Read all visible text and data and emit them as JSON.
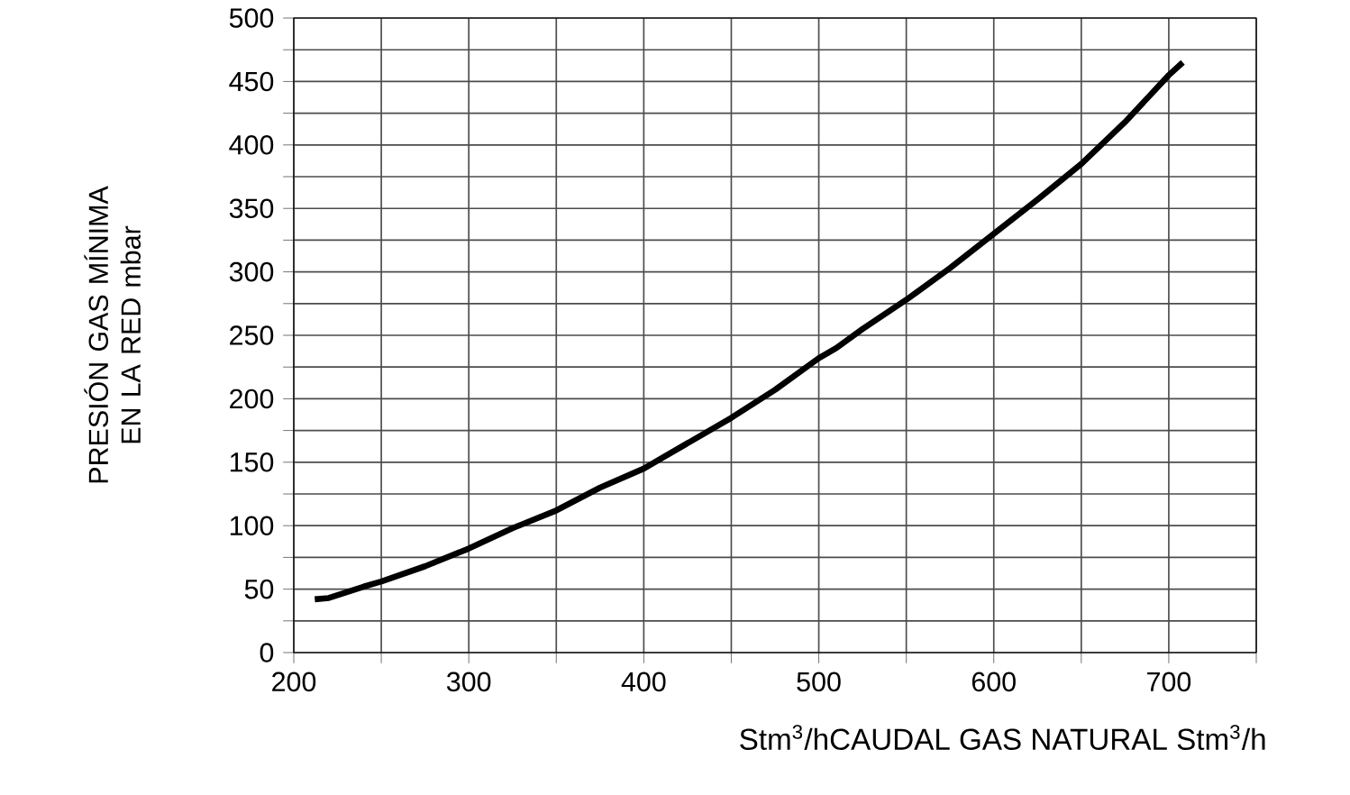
{
  "chart_data": {
    "type": "line",
    "xlabel": "Stm$^{3}$/hCAUDAL GAS NATURAL Stm$^{3}$/h",
    "ylabel": "PRESIÓN GAS MÍNIMA EN LA RED mbar",
    "x": [
      212,
      220,
      240,
      250,
      275,
      300,
      325,
      350,
      375,
      400,
      425,
      450,
      475,
      500,
      510,
      525,
      550,
      575,
      600,
      625,
      650,
      675,
      700,
      708
    ],
    "values": [
      42,
      43,
      52,
      56,
      68,
      82,
      98,
      112,
      130,
      145,
      165,
      185,
      207,
      232,
      240,
      255,
      278,
      303,
      330,
      357,
      385,
      418,
      455,
      465
    ],
    "color": "#000000",
    "xlim": [
      200,
      750
    ],
    "xticks": [
      200,
      {
        "value": 250,
        "label": null
      },
      300,
      {
        "value": 350,
        "label": null
      },
      400,
      {
        "value": 450,
        "label": null
      },
      500,
      {
        "value": 550,
        "label": null
      },
      600,
      {
        "value": 650,
        "label": null
      },
      700,
      {
        "value": 750,
        "label": null
      }
    ],
    "ylim": [
      0,
      500
    ],
    "yticks": [
      0,
      {
        "value": 25,
        "label": null
      },
      50,
      {
        "value": 75,
        "label": null
      },
      100,
      {
        "value": 125,
        "label": null
      },
      150,
      {
        "value": 175,
        "label": null
      },
      200,
      {
        "value": 225,
        "label": null
      },
      250,
      {
        "value": 275,
        "label": null
      },
      300,
      {
        "value": 325,
        "label": null
      },
      350,
      {
        "value": 375,
        "label": null
      },
      400,
      {
        "value": 425,
        "label": null
      },
      450,
      {
        "value": 475,
        "label": null
      },
      500
    ],
    "grid": true
  }
}
